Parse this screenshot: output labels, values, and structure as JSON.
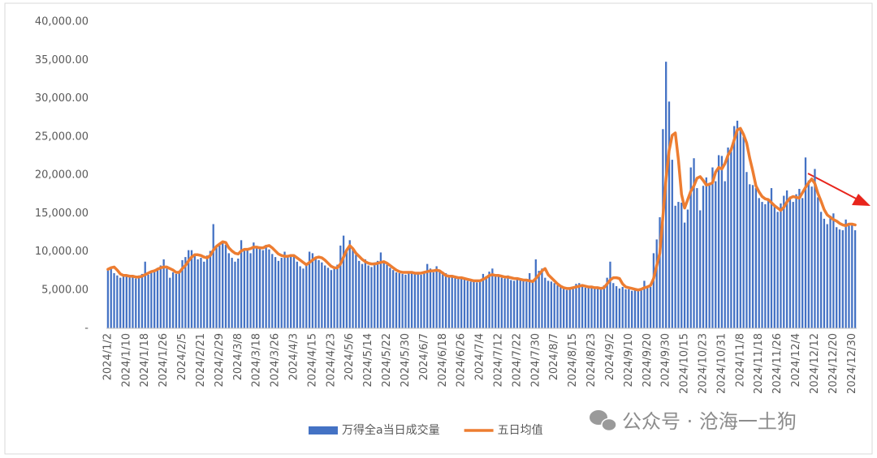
{
  "chart_data": {
    "type": "bar",
    "categories": [
      "2024/1/2",
      null,
      null,
      null,
      null,
      null,
      "2024/1/10",
      null,
      null,
      null,
      null,
      null,
      "2024/1/18",
      null,
      null,
      null,
      null,
      null,
      "2024/1/26",
      null,
      null,
      null,
      null,
      null,
      "2024/2/5",
      null,
      null,
      null,
      null,
      null,
      "2024/2/21",
      null,
      null,
      null,
      null,
      null,
      "2024/2/29",
      null,
      null,
      null,
      null,
      null,
      "2024/3/8",
      null,
      null,
      null,
      null,
      null,
      "2024/3/18",
      null,
      null,
      null,
      null,
      null,
      "2024/3/26",
      null,
      null,
      null,
      null,
      null,
      "2024/4/3",
      null,
      null,
      null,
      null,
      null,
      "2024/4/15",
      null,
      null,
      null,
      null,
      null,
      "2024/4/23",
      null,
      null,
      null,
      null,
      null,
      "2024/5/6",
      null,
      null,
      null,
      null,
      null,
      "2024/5/14",
      null,
      null,
      null,
      null,
      null,
      "2024/5/22",
      null,
      null,
      null,
      null,
      null,
      "2024/5/30",
      null,
      null,
      null,
      null,
      null,
      "2024/6/7",
      null,
      null,
      null,
      null,
      null,
      "2024/6/18",
      null,
      null,
      null,
      null,
      null,
      "2024/6/26",
      null,
      null,
      null,
      null,
      null,
      "2024/7/4",
      null,
      null,
      null,
      null,
      null,
      "2024/7/12",
      null,
      null,
      null,
      null,
      null,
      "2024/7/22",
      null,
      null,
      null,
      null,
      null,
      "2024/7/30",
      null,
      null,
      null,
      null,
      null,
      "2024/8/7",
      null,
      null,
      null,
      null,
      null,
      "2024/8/15",
      null,
      null,
      null,
      null,
      null,
      "2024/8/23",
      null,
      null,
      null,
      null,
      null,
      "2024/9/2",
      null,
      null,
      null,
      null,
      null,
      "2024/9/10",
      null,
      null,
      null,
      null,
      null,
      "2024/9/20",
      null,
      null,
      null,
      null,
      null,
      "2024/9/30",
      null,
      null,
      null,
      null,
      null,
      "2024/10/15",
      null,
      null,
      null,
      null,
      null,
      "2024/10/23",
      null,
      null,
      null,
      null,
      null,
      "2024/10/31",
      null,
      null,
      null,
      null,
      null,
      "2024/11/8",
      null,
      null,
      null,
      null,
      null,
      "2024/11/18",
      null,
      null,
      null,
      null,
      null,
      "2024/11/26",
      null,
      null,
      null,
      null,
      null,
      "2024/12/4",
      null,
      null,
      null,
      null,
      null,
      "2024/12/12",
      null,
      null,
      null,
      null,
      null,
      "2024/12/20",
      null,
      null,
      null,
      null,
      null,
      "2024/12/30",
      null
    ],
    "series": [
      {
        "name": "万得全a当日成交量",
        "type": "bar",
        "color": "#4472c4",
        "values": [
          7800,
          8000,
          7200,
          6900,
          6600,
          7000,
          6800,
          6900,
          6700,
          6500,
          6900,
          7100,
          8700,
          7000,
          7400,
          7600,
          7900,
          8200,
          9000,
          7800,
          6600,
          7300,
          7100,
          7500,
          8900,
          9300,
          10200,
          10200,
          9600,
          9000,
          9200,
          8700,
          9500,
          10100,
          13600,
          10700,
          11000,
          11200,
          10900,
          9800,
          9200,
          8700,
          9100,
          11500,
          10100,
          10300,
          9800,
          11200,
          10500,
          10700,
          10200,
          10900,
          10300,
          9700,
          9300,
          8800,
          9200,
          10000,
          9500,
          9400,
          9400,
          8700,
          8100,
          7800,
          8300,
          10000,
          9800,
          9200,
          8900,
          8600,
          8200,
          7900,
          7600,
          7800,
          8300,
          10800,
          12100,
          10200,
          11500,
          10400,
          9600,
          8800,
          8400,
          9000,
          8200,
          8000,
          8600,
          8800,
          9900,
          8700,
          8300,
          7900,
          7600,
          7300,
          7200,
          7100,
          7000,
          7300,
          7400,
          7200,
          7100,
          7000,
          7200,
          8400,
          7800,
          7300,
          8100,
          7600,
          7400,
          7200,
          6900,
          6800,
          6600,
          6500,
          6700,
          6400,
          6200,
          6100,
          6300,
          6000,
          6200,
          7100,
          6800,
          7400,
          7800,
          6900,
          6800,
          6600,
          6500,
          6900,
          6300,
          6200,
          6500,
          6300,
          6400,
          6100,
          7200,
          6000,
          9000,
          7500,
          7800,
          6600,
          6200,
          6100,
          5900,
          5600,
          5400,
          5200,
          5000,
          5100,
          5200,
          5800,
          5900,
          5600,
          5300,
          5500,
          5400,
          5200,
          5300,
          5100,
          5600,
          6600,
          8700,
          5900,
          5500,
          5200,
          5400,
          5100,
          5100,
          4900,
          5000,
          5000,
          5100,
          6200,
          5300,
          5400,
          9800,
          11600,
          14500,
          26000,
          34800,
          29600,
          22000,
          16000,
          16500,
          16400,
          13800,
          15500,
          21000,
          22200,
          18300,
          15400,
          18600,
          19700,
          19000,
          21000,
          19200,
          22600,
          22500,
          19200,
          23600,
          23300,
          26400,
          27100,
          26000,
          25000,
          20400,
          18800,
          18700,
          18300,
          17000,
          16500,
          16200,
          16800,
          18300,
          16000,
          15200,
          16300,
          17300,
          18000,
          17200,
          16500,
          17500,
          18200,
          17000,
          22300,
          19300,
          18500,
          20800,
          17100,
          15200,
          14300,
          13600,
          14700,
          15000,
          13200,
          12900,
          12800,
          14200,
          13400,
          13700,
          12800
        ]
      },
      {
        "name": "五日均值",
        "type": "line",
        "color": "#ed7d31",
        "values": [
          7700,
          7900,
          8000,
          7600,
          7100,
          6900,
          6900,
          6800,
          6800,
          6700,
          6700,
          6800,
          7000,
          7200,
          7400,
          7500,
          7700,
          7900,
          8000,
          8000,
          7800,
          7600,
          7300,
          7300,
          7800,
          8200,
          8800,
          9300,
          9600,
          9600,
          9500,
          9300,
          9200,
          9500,
          10200,
          10700,
          11000,
          11300,
          11200,
          10500,
          10100,
          9800,
          9700,
          10100,
          10300,
          10300,
          10400,
          10600,
          10600,
          10500,
          10500,
          10700,
          10800,
          10500,
          10100,
          9700,
          9500,
          9400,
          9400,
          9500,
          9500,
          9200,
          8900,
          8600,
          8300,
          8600,
          8900,
          9200,
          9300,
          9200,
          8900,
          8500,
          8100,
          7900,
          7900,
          8400,
          9300,
          10200,
          10800,
          10400,
          9800,
          9400,
          9000,
          8700,
          8500,
          8400,
          8400,
          8500,
          8600,
          8700,
          8500,
          8200,
          7900,
          7600,
          7400,
          7300,
          7300,
          7300,
          7300,
          7200,
          7200,
          7200,
          7300,
          7400,
          7500,
          7500,
          7600,
          7500,
          7200,
          6900,
          6800,
          6800,
          6700,
          6600,
          6600,
          6500,
          6400,
          6300,
          6200,
          6200,
          6200,
          6400,
          6600,
          6900,
          7000,
          6900,
          6900,
          6800,
          6700,
          6700,
          6600,
          6500,
          6500,
          6400,
          6300,
          6300,
          6200,
          6100,
          6500,
          7000,
          7500,
          7800,
          7000,
          6600,
          6200,
          5800,
          5500,
          5300,
          5200,
          5200,
          5300,
          5400,
          5500,
          5600,
          5500,
          5400,
          5400,
          5300,
          5300,
          5200,
          5300,
          5800,
          6300,
          6600,
          6600,
          6500,
          5800,
          5400,
          5300,
          5200,
          5100,
          5000,
          5100,
          5300,
          5400,
          5600,
          6500,
          8200,
          9800,
          14600,
          19500,
          23200,
          25200,
          25500,
          22000,
          17500,
          15700,
          16800,
          17900,
          18600,
          19600,
          19800,
          19300,
          18700,
          18800,
          19000,
          20400,
          21000,
          20800,
          21500,
          22600,
          23300,
          24600,
          25900,
          26100,
          25300,
          24200,
          22200,
          20500,
          18600,
          17800,
          17200,
          16900,
          16800,
          16400,
          16000,
          15700,
          15400,
          15800,
          16500,
          17000,
          17200,
          17100,
          17000,
          17700,
          18400,
          19000,
          19500,
          18900,
          17600,
          16600,
          15500,
          14800,
          14500,
          14200,
          14000,
          13700,
          13500,
          13400,
          13600,
          13600,
          13500
        ]
      }
    ],
    "ylim": [
      0,
      40000
    ],
    "yticks": [
      {
        "value": 0,
        "label": "-"
      },
      {
        "value": 5000,
        "label": "5,000.00"
      },
      {
        "value": 10000,
        "label": "10,000.00"
      },
      {
        "value": 15000,
        "label": "15,000.00"
      },
      {
        "value": 20000,
        "label": "20,000.00"
      },
      {
        "value": 25000,
        "label": "25,000.00"
      },
      {
        "value": 30000,
        "label": "30,000.00"
      },
      {
        "value": 35000,
        "label": "35,000.00"
      },
      {
        "value": 40000,
        "label": "40,000.00"
      }
    ],
    "grid": false,
    "legend": "bottom",
    "watermark": "公众号 · 沧海一土狗"
  }
}
